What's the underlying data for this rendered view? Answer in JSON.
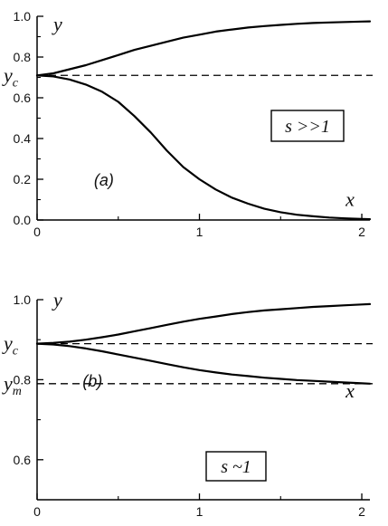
{
  "chart_data": [
    {
      "type": "line",
      "panel_label": "(a)",
      "xlabel": "x",
      "ylabel": "y",
      "xlim": [
        0,
        2.05
      ],
      "ylim": [
        0,
        1
      ],
      "x_ticks": [
        0,
        1,
        2
      ],
      "y_ticks": [
        0,
        0.2,
        0.4,
        0.6,
        0.8,
        1
      ],
      "x_tick_labels": [
        "0",
        "1",
        "2"
      ],
      "y_tick_labels": [
        "0.0",
        "0.2",
        "0.4",
        "0.6",
        "0.8",
        "1.0"
      ],
      "x_minor_ticks": [
        0.5,
        1.5
      ],
      "y_minor_ticks": [
        0.1,
        0.3,
        0.5,
        0.7,
        0.9
      ],
      "annotation_box": "s >>1",
      "reference_lines": [
        {
          "name": "y_c",
          "y": 0.71,
          "main": "y",
          "sub": "c"
        }
      ],
      "series": [
        {
          "x": [
            0,
            0.1,
            0.2,
            0.3,
            0.4,
            0.5,
            0.6,
            0.7,
            0.8,
            0.9,
            1,
            1.1,
            1.2,
            1.3,
            1.4,
            1.5,
            1.6,
            1.7,
            1.8,
            1.9,
            2,
            2.05
          ],
          "y": [
            0.71,
            0.72,
            0.74,
            0.76,
            0.785,
            0.81,
            0.835,
            0.855,
            0.875,
            0.895,
            0.91,
            0.925,
            0.935,
            0.945,
            0.952,
            0.958,
            0.963,
            0.967,
            0.97,
            0.972,
            0.974,
            0.975
          ]
        },
        {
          "x": [
            0,
            0.1,
            0.2,
            0.3,
            0.4,
            0.5,
            0.6,
            0.7,
            0.8,
            0.9,
            1,
            1.1,
            1.2,
            1.3,
            1.4,
            1.5,
            1.6,
            1.7,
            1.8,
            1.9,
            2,
            2.05
          ],
          "y": [
            0.71,
            0.705,
            0.69,
            0.665,
            0.63,
            0.58,
            0.51,
            0.43,
            0.34,
            0.26,
            0.2,
            0.15,
            0.11,
            0.08,
            0.055,
            0.038,
            0.026,
            0.018,
            0.012,
            0.008,
            0.005,
            0.004
          ]
        }
      ]
    },
    {
      "type": "line",
      "panel_label": "(b)",
      "xlabel": "x",
      "ylabel": "y",
      "xlim": [
        0,
        2.05
      ],
      "ylim": [
        0.5,
        1
      ],
      "x_ticks": [
        0,
        1,
        2
      ],
      "y_ticks": [
        0.6,
        0.8,
        1
      ],
      "x_tick_labels": [
        "0",
        "1",
        "2"
      ],
      "y_tick_labels": [
        "0.6",
        "0.8",
        "1.0"
      ],
      "x_minor_ticks": [
        0.5,
        1.5
      ],
      "y_minor_ticks": [
        0.7,
        0.9
      ],
      "annotation_box": "s ~1",
      "reference_lines": [
        {
          "name": "y_c",
          "y": 0.89,
          "main": "y",
          "sub": "c"
        },
        {
          "name": "y_m",
          "y": 0.79,
          "main": "y",
          "sub": "m"
        }
      ],
      "series": [
        {
          "x": [
            0,
            0.1,
            0.2,
            0.3,
            0.4,
            0.5,
            0.6,
            0.7,
            0.8,
            0.9,
            1,
            1.1,
            1.2,
            1.3,
            1.4,
            1.5,
            1.6,
            1.7,
            1.8,
            1.9,
            2,
            2.05
          ],
          "y": [
            0.89,
            0.892,
            0.895,
            0.9,
            0.906,
            0.913,
            0.921,
            0.929,
            0.937,
            0.945,
            0.952,
            0.958,
            0.964,
            0.969,
            0.973,
            0.976,
            0.979,
            0.982,
            0.984,
            0.986,
            0.988,
            0.989
          ]
        },
        {
          "x": [
            0,
            0.1,
            0.2,
            0.3,
            0.4,
            0.5,
            0.6,
            0.7,
            0.8,
            0.9,
            1,
            1.1,
            1.2,
            1.3,
            1.4,
            1.5,
            1.6,
            1.7,
            1.8,
            1.9,
            2,
            2.05
          ],
          "y": [
            0.89,
            0.888,
            0.884,
            0.878,
            0.871,
            0.863,
            0.855,
            0.847,
            0.839,
            0.831,
            0.824,
            0.818,
            0.813,
            0.809,
            0.805,
            0.802,
            0.799,
            0.797,
            0.795,
            0.793,
            0.791,
            0.79
          ]
        }
      ]
    }
  ]
}
